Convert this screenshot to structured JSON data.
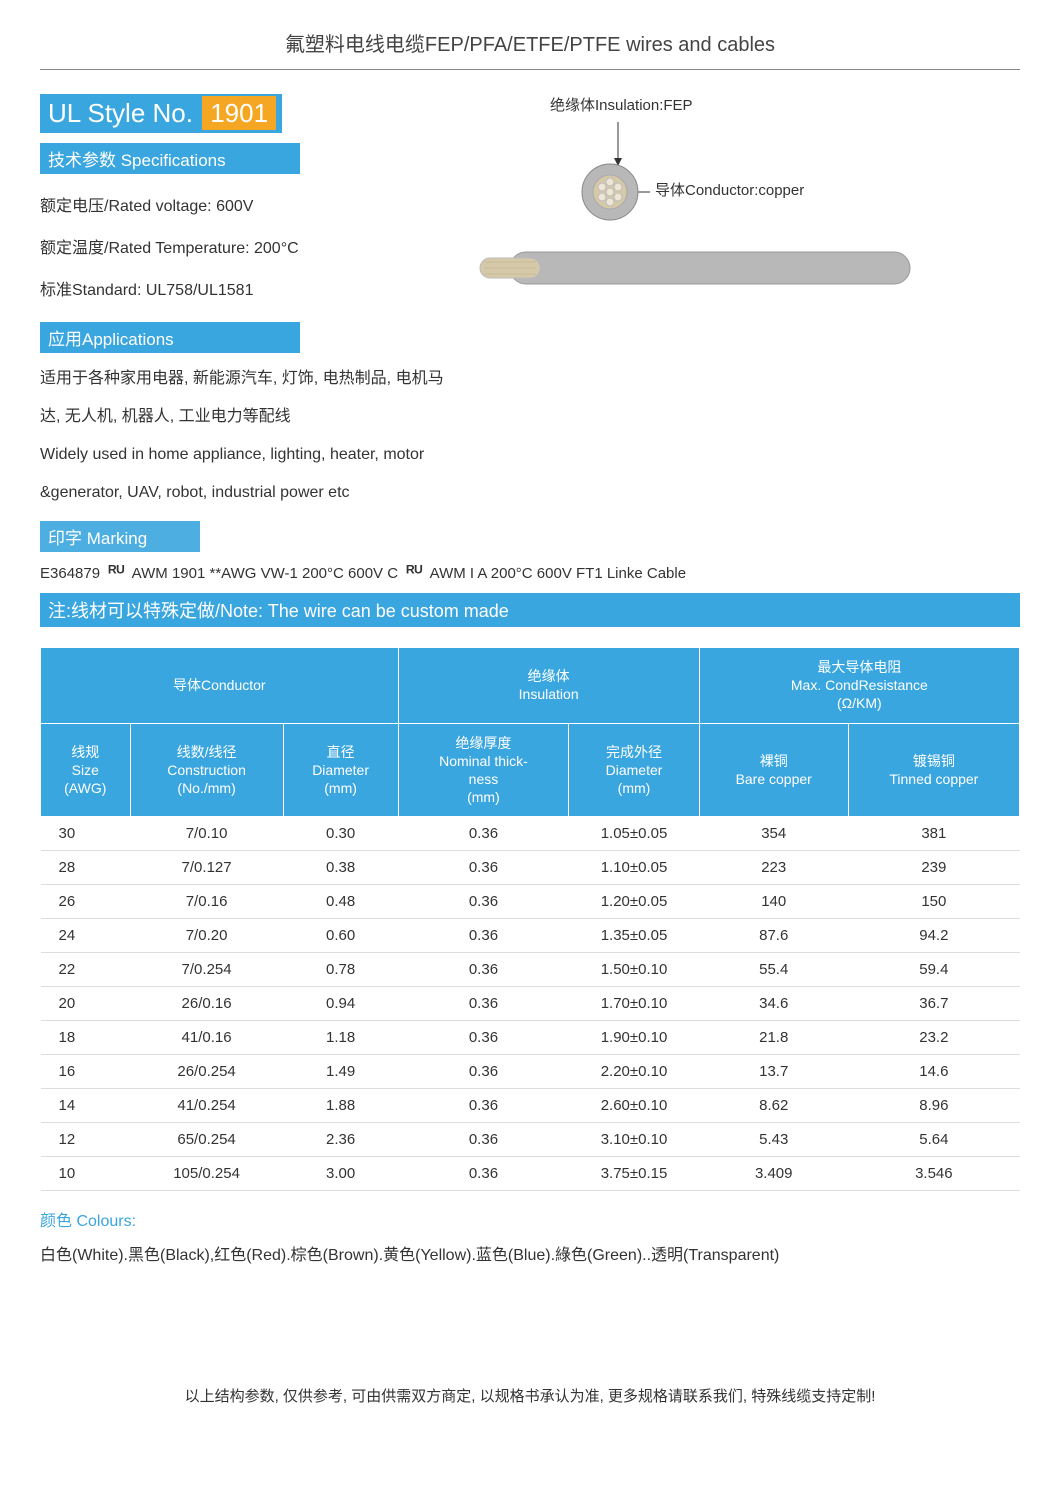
{
  "page_title": "氟塑料电线电缆FEP/PFA/ETFE/PTFE wires and cables",
  "style": {
    "prefix": "UL Style No.",
    "number": "1901"
  },
  "spec_hdr": "技术参数 Specifications",
  "specs": {
    "voltage": "额定电压/Rated voltage: 600V",
    "temp": "额定温度/Rated Temperature: 200°C",
    "standard": "标准Standard: UL758/UL1581"
  },
  "app_hdr": "应用Applications",
  "apps": {
    "l1": "适用于各种家用电器, 新能源汽车, 灯饰, 电热制品, 电机马",
    "l2": "达, 无人机, 机器人, 工业电力等配线",
    "l3": "Widely used in home appliance, lighting, heater, motor",
    "l4": "&generator, UAV, robot, industrial power etc"
  },
  "marking_hdr": "印字 Marking",
  "marking": {
    "a": "E364879",
    "b": "AWM 1901 **AWG VW-1 200°C 600V C",
    "c": "AWM I A 200°C 600V FT1 Linke Cable"
  },
  "note_bar": "注:线材可以特殊定做/Note: The wire can be custom made",
  "diagram": {
    "insulation": "绝缘体Insulation:FEP",
    "conductor": "导体Conductor:copper",
    "insulation_color": "#b8b8b8",
    "conductor_color": "#d6c9a8",
    "strand_color": "#ede6d4"
  },
  "table": {
    "group_headers": {
      "conductor": "导体Conductor",
      "insulation": "绝缘体\nInsulation",
      "resistance": "最大导体电阻\nMax. CondResistance\n(Ω/KM)"
    },
    "col_headers": {
      "size": "线规\nSize\n(AWG)",
      "construction": "线数/线径\nConstruction\n(No./mm)",
      "diameter": "直径\nDiameter\n(mm)",
      "thickness": "绝缘厚度\nNominal thick-\nness\n(mm)",
      "od": "完成外径\nDiameter\n(mm)",
      "bare": "裸铜\nBare copper",
      "tinned": "镀锡铜\nTinned copper"
    },
    "rows": [
      [
        "30",
        "7/0.10",
        "0.30",
        "0.36",
        "1.05±0.05",
        "354",
        "381"
      ],
      [
        "28",
        "7/0.127",
        "0.38",
        "0.36",
        "1.10±0.05",
        "223",
        "239"
      ],
      [
        "26",
        "7/0.16",
        "0.48",
        "0.36",
        "1.20±0.05",
        "140",
        "150"
      ],
      [
        "24",
        "7/0.20",
        "0.60",
        "0.36",
        "1.35±0.05",
        "87.6",
        "94.2"
      ],
      [
        "22",
        "7/0.254",
        "0.78",
        "0.36",
        "1.50±0.10",
        "55.4",
        "59.4"
      ],
      [
        "20",
        "26/0.16",
        "0.94",
        "0.36",
        "1.70±0.10",
        "34.6",
        "36.7"
      ],
      [
        "18",
        "41/0.16",
        "1.18",
        "0.36",
        "1.90±0.10",
        "21.8",
        "23.2"
      ],
      [
        "16",
        "26/0.254",
        "1.49",
        "0.36",
        "2.20±0.10",
        "13.7",
        "14.6"
      ],
      [
        "14",
        "41/0.254",
        "1.88",
        "0.36",
        "2.60±0.10",
        "8.62",
        "8.96"
      ],
      [
        "12",
        "65/0.254",
        "2.36",
        "0.36",
        "3.10±0.10",
        "5.43",
        "5.64"
      ],
      [
        "10",
        "105/0.254",
        "3.00",
        "0.36",
        "3.75±0.15",
        "3.409",
        "3.546"
      ]
    ]
  },
  "colours_hdr": "颜色 Colours:",
  "colours_line": "白色(White).黑色(Black),红色(Red).棕色(Brown).黄色(Yellow).蓝色(Blue).綠色(Green)..透明(Transparent)",
  "footer": "以上结构参数, 仅供参考, 可由供需双方商定, 以规格书承认为准, 更多规格请联系我们, 特殊线缆支持定制!",
  "colors": {
    "primary": "#3aa6df",
    "accent": "#f5a623",
    "text": "#333333"
  }
}
